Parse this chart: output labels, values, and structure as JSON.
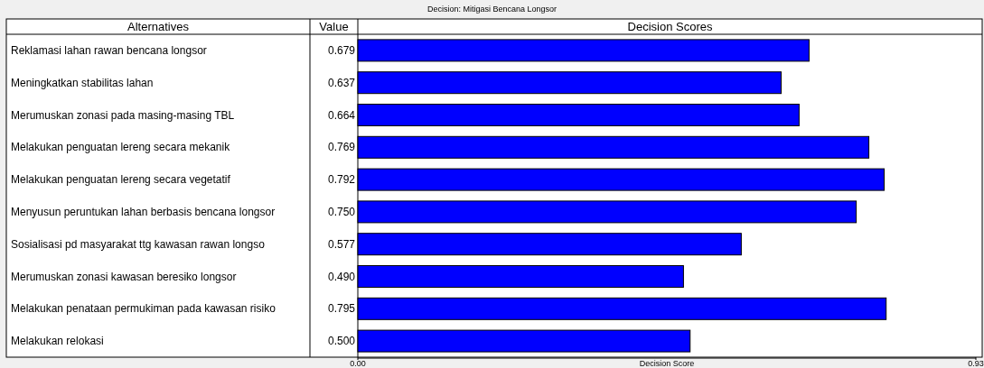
{
  "chart_data": {
    "type": "bar",
    "orientation": "horizontal",
    "title": "Decision: Mitigasi Bencana Longsor",
    "annotations": [
      "Alternatives",
      "Value",
      "Decision Scores"
    ],
    "categories": [
      "Reklamasi lahan rawan bencana longsor",
      "Meningkatkan stabilitas lahan",
      "Merumuskan zonasi pada masing-masing TBL",
      "Melakukan penguatan lereng secara mekanik",
      "Melakukan penguatan lereng secara vegetatif",
      "Menyusun peruntukan lahan berbasis bencana longsor",
      "Sosialisasi pd masyarakat ttg kawasan rawan longso",
      "Merumuskan zonasi kawasan beresiko longsor",
      "Melakukan penataan permukiman pada kawasan risiko",
      "Melakukan relokasi"
    ],
    "values": [
      0.679,
      0.637,
      0.664,
      0.769,
      0.792,
      0.75,
      0.577,
      0.49,
      0.795,
      0.5
    ],
    "value_labels": [
      "0.679",
      "0.637",
      "0.664",
      "0.769",
      "0.792",
      "0.750",
      "0.577",
      "0.490",
      "0.795",
      "0.500"
    ],
    "color": "#0000ff",
    "xlabel": "Decision Score",
    "xlim": [
      0,
      0.93
    ],
    "xticks": [
      {
        "value": 0,
        "label": "0.00"
      },
      {
        "value": 0.93,
        "label": "0.93"
      }
    ]
  }
}
